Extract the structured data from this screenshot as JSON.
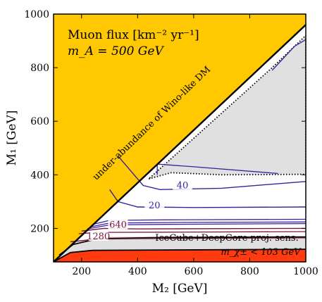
{
  "chart_data": {
    "type": "contour",
    "xlabel": "M₂ [GeV]",
    "ylabel": "M₁ [GeV]",
    "xlim": [
      100,
      1000
    ],
    "ylim": [
      75,
      1000
    ],
    "x_ticks": [
      200,
      400,
      600,
      800,
      1000
    ],
    "y_ticks": [
      200,
      400,
      600,
      800,
      1000
    ],
    "grid": false,
    "annotations": {
      "title_line1": "Muon flux [km⁻² yr⁻¹]",
      "title_line2": "m_A = 500 GeV",
      "diagonal_label": "under-abundance of Wino-like DM",
      "sensitivity_label": "IceCube+DeepCore proj. sens.",
      "chargino_label": "m_χ± < 103 GeV"
    },
    "regions": [
      {
        "name": "under-abundance of Wino-like DM",
        "color": "#ffc800",
        "boundary": [
          [
            100,
            75
          ],
          [
            1000,
            960
          ]
        ]
      },
      {
        "name": "chargino mass bound",
        "color": "#ff3b0f",
        "upper_edge": [
          [
            100,
            75
          ],
          [
            160,
            110
          ],
          [
            240,
            118
          ],
          [
            1000,
            122
          ]
        ]
      },
      {
        "name": "IceCube+DeepCore projected sensitivity (low M1)",
        "color": "#e0e0e0"
      },
      {
        "name": "IceCube+DeepCore projected sensitivity (wedge)",
        "color": "#e0e0e0",
        "boundary": [
          [
            440,
            385
          ],
          [
            520,
            408
          ],
          [
            700,
            400
          ],
          [
            1000,
            402
          ],
          [
            1000,
            920
          ],
          [
            880,
            800
          ]
        ]
      }
    ],
    "contours": [
      {
        "level": 20,
        "color": "#3b1fa0",
        "points": [
          [
            300,
            345
          ],
          [
            330,
            300
          ],
          [
            400,
            280
          ],
          [
            600,
            278
          ],
          [
            1000,
            280
          ]
        ]
      },
      {
        "level": 40,
        "color": "#3b1fa0",
        "points": [
          [
            330,
            470
          ],
          [
            420,
            360
          ],
          [
            480,
            345
          ],
          [
            700,
            350
          ],
          [
            1000,
            375
          ]
        ]
      },
      {
        "level": 640,
        "color": "#7a1740",
        "points": [
          [
            200,
            190
          ],
          [
            280,
            200
          ],
          [
            400,
            198
          ],
          [
            1000,
            200
          ]
        ]
      },
      {
        "level": 1280,
        "color": "#7a1740",
        "points": [
          [
            160,
            150
          ],
          [
            250,
            160
          ],
          [
            400,
            162
          ],
          [
            1000,
            165
          ]
        ]
      }
    ],
    "series_colors": {
      "blue_contours": "#3b1fa0",
      "red_contours": "#7a1740",
      "dm_region": "#ffc800",
      "lep_region": "#ff3b0f",
      "sensitivity": "#e0e0e0"
    }
  }
}
